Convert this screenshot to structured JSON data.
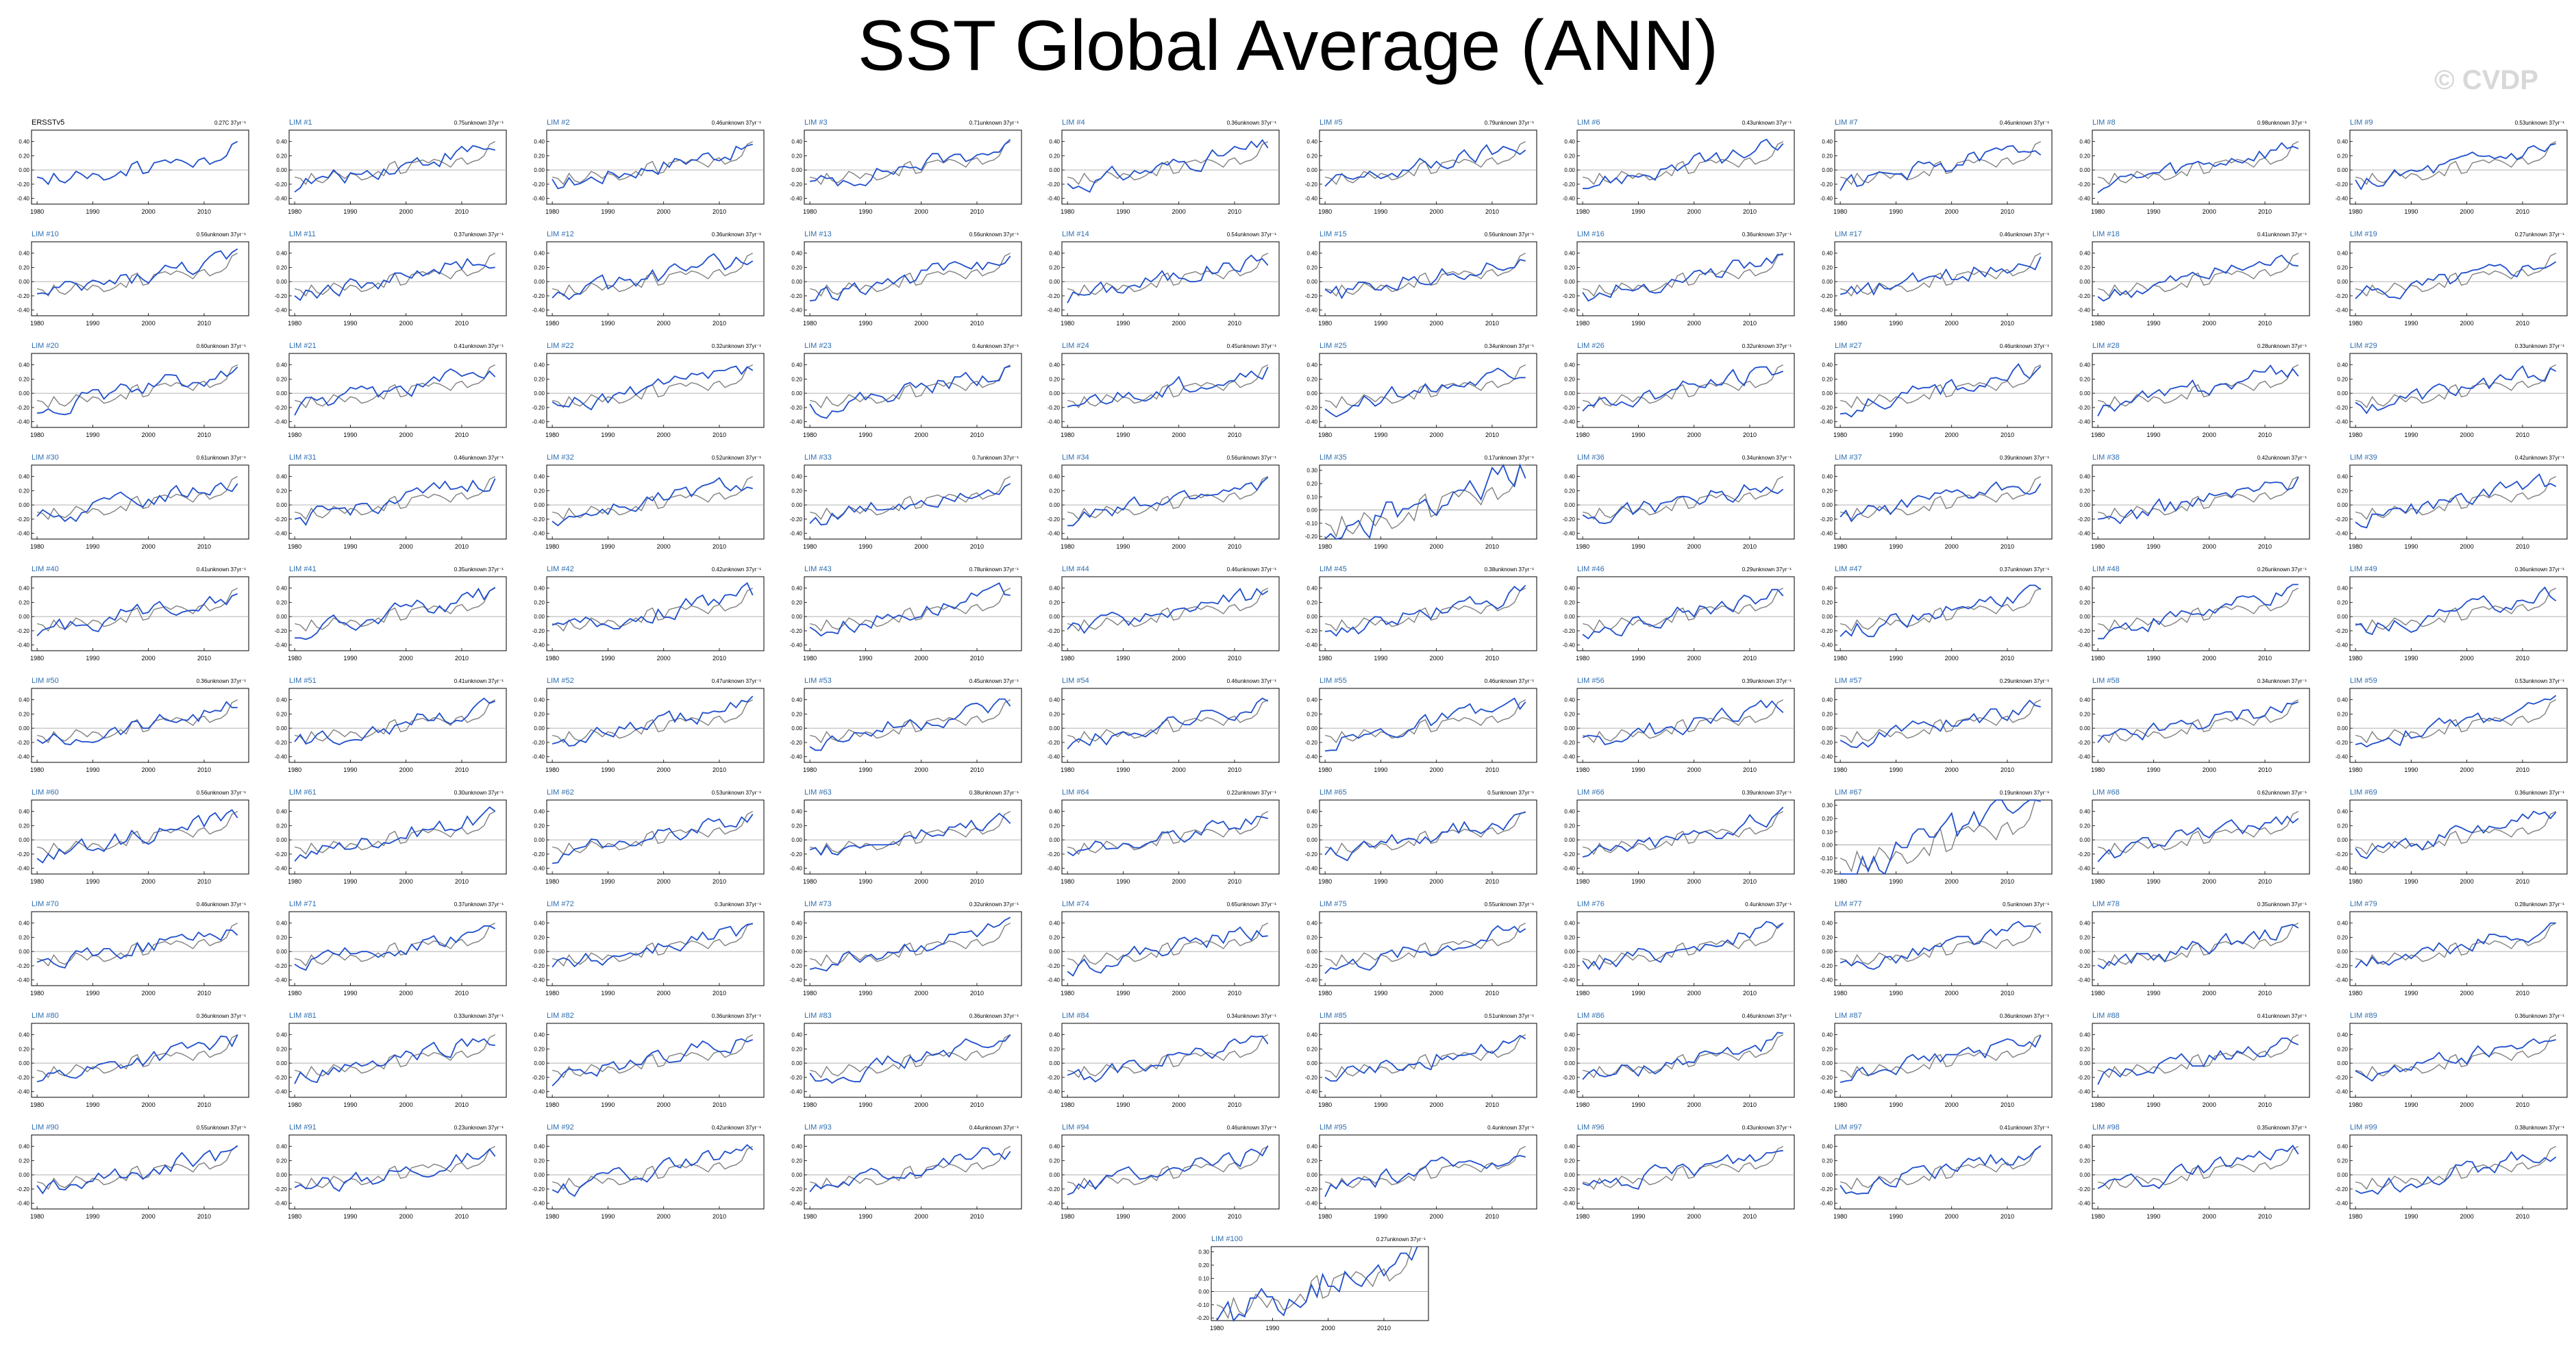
{
  "page": {
    "title": "SST Global Average (ANN)",
    "watermark": "© CVDP"
  },
  "colors": {
    "model": "#1f4fcc",
    "observation": "#808080",
    "first_panel": "#1f4fcc",
    "label": "#2f6fb0",
    "axis": "#000000"
  },
  "chart_data": {
    "type": "line",
    "x_range": [
      1979,
      2018
    ],
    "x_ticks": [
      1980,
      1990,
      2000,
      2010
    ],
    "y_ticks_default": [
      "0.40",
      "0.20",
      "0.00",
      "-0.20",
      "-0.40"
    ],
    "y_ticks_alt": [
      "0.30",
      "0.20",
      "0.10",
      "0.00",
      "-0.10",
      "-0.20"
    ],
    "observed": {
      "name": "ERSSTv5",
      "trend": "0.27C 37yr⁻¹",
      "x": [
        1980,
        1981,
        1982,
        1983,
        1984,
        1985,
        1986,
        1987,
        1988,
        1989,
        1990,
        1991,
        1992,
        1993,
        1994,
        1995,
        1996,
        1997,
        1998,
        1999,
        2000,
        2001,
        2002,
        2003,
        2004,
        2005,
        2006,
        2007,
        2008,
        2009,
        2010,
        2011,
        2012,
        2013,
        2014,
        2015,
        2016
      ],
      "values": [
        -0.1,
        -0.12,
        -0.2,
        -0.05,
        -0.15,
        -0.18,
        -0.12,
        -0.02,
        -0.06,
        -0.12,
        -0.05,
        -0.07,
        -0.14,
        -0.12,
        -0.08,
        -0.02,
        -0.08,
        0.08,
        0.12,
        -0.05,
        -0.03,
        0.1,
        0.12,
        0.14,
        0.1,
        0.15,
        0.13,
        0.09,
        0.04,
        0.14,
        0.17,
        0.08,
        0.12,
        0.14,
        0.2,
        0.36,
        0.4
      ]
    },
    "trends": [
      "0.75unknown 37yr⁻¹",
      "0.46unknown 37yr⁻¹",
      "0.71unknown 37yr⁻¹",
      "0.36unknown 37yr⁻¹",
      "0.79unknown 37yr⁻¹",
      "0.43unknown 37yr⁻¹",
      "0.46unknown 37yr⁻¹",
      "0.98unknown 37yr⁻¹",
      "0.53unknown 37yr⁻¹",
      "0.56unknown 37yr⁻¹",
      "0.37unknown 37yr⁻¹",
      "0.36unknown 37yr⁻¹",
      "0.56unknown 37yr⁻¹",
      "0.54unknown 37yr⁻¹",
      "0.56unknown 37yr⁻¹",
      "0.36unknown 37yr⁻¹",
      "0.46unknown 37yr⁻¹",
      "0.41unknown 37yr⁻¹",
      "0.27unknown 37yr⁻¹",
      "0.60unknown 37yr⁻¹",
      "0.41unknown 37yr⁻¹",
      "0.32unknown 37yr⁻¹",
      "0.4unknown 37yr⁻¹",
      "0.45unknown 37yr⁻¹",
      "0.34unknown 37yr⁻¹",
      "0.32unknown 37yr⁻¹",
      "0.46unknown 37yr⁻¹",
      "0.28unknown 37yr⁻¹",
      "0.33unknown 37yr⁻¹",
      "0.61unknown 37yr⁻¹",
      "0.46unknown 37yr⁻¹",
      "0.52unknown 37yr⁻¹",
      "0.7unknown 37yr⁻¹",
      "0.56unknown 37yr⁻¹",
      "0.17unknown 37yr⁻¹",
      "0.34unknown 37yr⁻¹",
      "0.39unknown 37yr⁻¹",
      "0.42unknown 37yr⁻¹",
      "0.42unknown 37yr⁻¹",
      "0.41unknown 37yr⁻¹",
      "0.35unknown 37yr⁻¹",
      "0.42unknown 37yr⁻¹",
      "0.78unknown 37yr⁻¹",
      "0.46unknown 37yr⁻¹",
      "0.38unknown 37yr⁻¹",
      "0.29unknown 37yr⁻¹",
      "0.37unknown 37yr⁻¹",
      "0.26unknown 37yr⁻¹",
      "0.36unknown 37yr⁻¹",
      "0.36unknown 37yr⁻¹",
      "0.41unknown 37yr⁻¹",
      "0.47unknown 37yr⁻¹",
      "0.45unknown 37yr⁻¹",
      "0.46unknown 37yr⁻¹",
      "0.46unknown 37yr⁻¹",
      "0.39unknown 37yr⁻¹",
      "0.29unknown 37yr⁻¹",
      "0.34unknown 37yr⁻¹",
      "0.53unknown 37yr⁻¹",
      "0.56unknown 37yr⁻¹",
      "0.30unknown 37yr⁻¹",
      "0.53unknown 37yr⁻¹",
      "0.38unknown 37yr⁻¹",
      "0.22unknown 37yr⁻¹",
      "0.5unknown 37yr⁻¹",
      "0.39unknown 37yr⁻¹",
      "0.19unknown 37yr⁻¹",
      "0.62unknown 37yr⁻¹",
      "0.36unknown 37yr⁻¹",
      "0.46unknown 37yr⁻¹",
      "0.37unknown 37yr⁻¹",
      "0.3unknown 37yr⁻¹",
      "0.32unknown 37yr⁻¹",
      "0.65unknown 37yr⁻¹",
      "0.55unknown 37yr⁻¹",
      "0.4unknown 37yr⁻¹",
      "0.5unknown 37yr⁻¹",
      "0.35unknown 37yr⁻¹",
      "0.28unknown 37yr⁻¹",
      "0.36unknown 37yr⁻¹",
      "0.33unknown 37yr⁻¹",
      "0.36unknown 37yr⁻¹",
      "0.36unknown 37yr⁻¹",
      "0.34unknown 37yr⁻¹",
      "0.51unknown 37yr⁻¹",
      "0.46unknown 37yr⁻¹",
      "0.36unknown 37yr⁻¹",
      "0.41unknown 37yr⁻¹",
      "0.36unknown 37yr⁻¹",
      "0.55unknown 37yr⁻¹",
      "0.23unknown 37yr⁻¹",
      "0.42unknown 37yr⁻¹",
      "0.44unknown 37yr⁻¹",
      "0.46unknown 37yr⁻¹",
      "0.4unknown 37yr⁻¹",
      "0.43unknown 37yr⁻¹",
      "0.41unknown 37yr⁻¹",
      "0.35unknown 37yr⁻¹",
      "0.38unknown 37yr⁻¹",
      "0.27unknown 37yr⁻¹",
      "0.21unknown 37yr⁻¹"
    ],
    "members": []
  }
}
